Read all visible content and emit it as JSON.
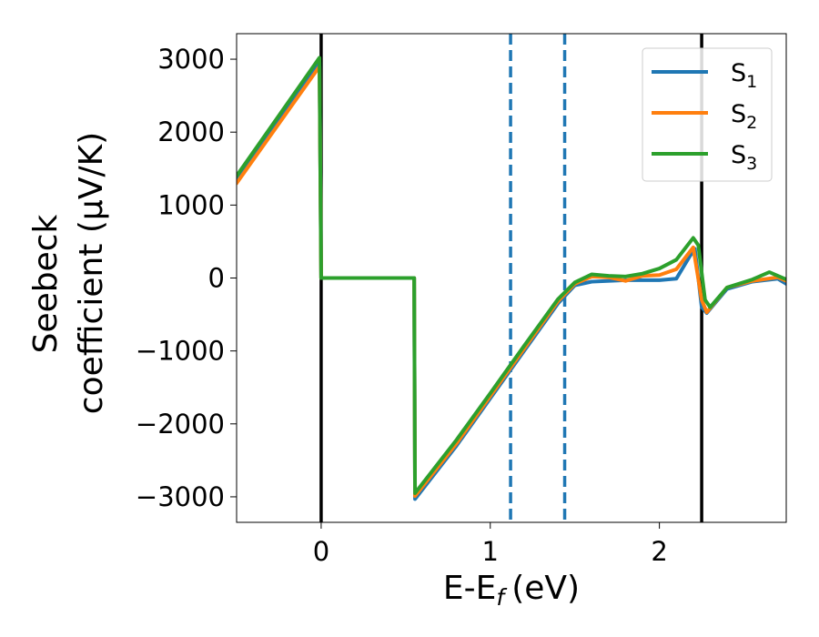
{
  "chart_data": {
    "type": "line",
    "xlabel": "E-E",
    "xlabel_sub": "f",
    "xlabel_unit": "(eV)",
    "ylabel_line1": "Seebeck",
    "ylabel_line2": "coefficient  (μV/K)",
    "xlim": [
      -0.5,
      2.75
    ],
    "ylim": [
      -3350,
      3350
    ],
    "x_ticks": [
      0,
      1,
      2
    ],
    "x_tick_labels": [
      "0",
      "1",
      "2"
    ],
    "y_ticks": [
      3000,
      2000,
      1000,
      0,
      -1000,
      -2000,
      -3000
    ],
    "y_tick_labels": [
      "3000",
      "2000",
      "1000",
      "0",
      "−1000",
      "−2000",
      "−3000"
    ],
    "grid": false,
    "legend_position": "top-right",
    "vertical_lines": [
      {
        "x": 0,
        "style": "solid",
        "color": "#000000"
      },
      {
        "x": 2.25,
        "style": "solid",
        "color": "#000000"
      },
      {
        "x": 1.12,
        "style": "dashed",
        "color": "#1f77b4"
      },
      {
        "x": 1.44,
        "style": "dashed",
        "color": "#1f77b4"
      }
    ],
    "series": [
      {
        "name": "S",
        "name_sub": "1",
        "color": "#1f77b4",
        "points": [
          [
            -0.5,
            1350
          ],
          [
            -0.01,
            2960
          ],
          [
            0.0,
            0
          ],
          [
            0.55,
            0
          ],
          [
            0.555,
            -3030
          ],
          [
            0.8,
            -2300
          ],
          [
            1.0,
            -1650
          ],
          [
            1.2,
            -1000
          ],
          [
            1.4,
            -350
          ],
          [
            1.5,
            -100
          ],
          [
            1.6,
            -50
          ],
          [
            1.8,
            -30
          ],
          [
            2.0,
            -30
          ],
          [
            2.1,
            -10
          ],
          [
            2.18,
            300
          ],
          [
            2.21,
            400
          ],
          [
            2.25,
            -400
          ],
          [
            2.28,
            -480
          ],
          [
            2.4,
            -150
          ],
          [
            2.55,
            -50
          ],
          [
            2.7,
            -10
          ],
          [
            2.75,
            -80
          ]
        ]
      },
      {
        "name": "S",
        "name_sub": "2",
        "color": "#ff7f0e",
        "points": [
          [
            -0.5,
            1300
          ],
          [
            -0.01,
            2900
          ],
          [
            0.0,
            0
          ],
          [
            0.55,
            0
          ],
          [
            0.555,
            -2990
          ],
          [
            0.8,
            -2270
          ],
          [
            1.0,
            -1620
          ],
          [
            1.2,
            -970
          ],
          [
            1.4,
            -320
          ],
          [
            1.5,
            -80
          ],
          [
            1.6,
            20
          ],
          [
            1.7,
            10
          ],
          [
            1.8,
            -40
          ],
          [
            1.9,
            30
          ],
          [
            2.0,
            40
          ],
          [
            2.1,
            120
          ],
          [
            2.2,
            420
          ],
          [
            2.25,
            -300
          ],
          [
            2.28,
            -470
          ],
          [
            2.4,
            -130
          ],
          [
            2.55,
            -40
          ],
          [
            2.7,
            10
          ],
          [
            2.75,
            -40
          ]
        ]
      },
      {
        "name": "S",
        "name_sub": "3",
        "color": "#2ca02c",
        "points": [
          [
            -0.5,
            1400
          ],
          [
            -0.01,
            3020
          ],
          [
            0.0,
            0
          ],
          [
            0.55,
            0
          ],
          [
            0.555,
            -2950
          ],
          [
            0.8,
            -2220
          ],
          [
            1.0,
            -1580
          ],
          [
            1.2,
            -930
          ],
          [
            1.4,
            -290
          ],
          [
            1.5,
            -60
          ],
          [
            1.6,
            50
          ],
          [
            1.7,
            30
          ],
          [
            1.8,
            20
          ],
          [
            1.9,
            60
          ],
          [
            2.0,
            130
          ],
          [
            2.1,
            250
          ],
          [
            2.2,
            550
          ],
          [
            2.23,
            450
          ],
          [
            2.27,
            -300
          ],
          [
            2.3,
            -400
          ],
          [
            2.4,
            -130
          ],
          [
            2.55,
            -20
          ],
          [
            2.65,
            80
          ],
          [
            2.7,
            30
          ],
          [
            2.75,
            -20
          ]
        ]
      }
    ]
  }
}
